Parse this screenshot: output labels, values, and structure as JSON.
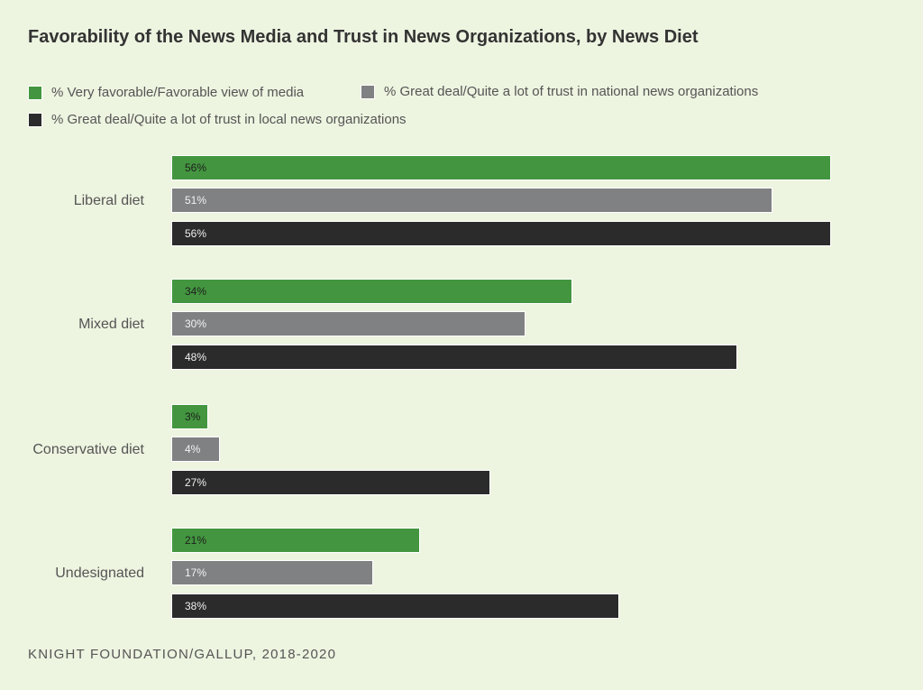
{
  "chart_data": {
    "type": "bar",
    "orientation": "horizontal",
    "title": "Favorability of the News Media and Trust in News Organizations, by News Diet",
    "categories": [
      "Liberal diet",
      "Mixed diet",
      "Conservative diet",
      "Undesignated"
    ],
    "series": [
      {
        "name": "% Very favorable/Favorable view of media",
        "color": "#43963f",
        "label_color": "#1e1e1e",
        "values": [
          56,
          34,
          3,
          21
        ]
      },
      {
        "name": "% Great deal/Quite a lot of trust in national news organizations",
        "color": "#7f8183",
        "label_color": "#f2f2f2",
        "values": [
          51,
          30,
          4,
          17
        ]
      },
      {
        "name": "% Great deal/Quite a lot of trust in local news organizations",
        "color": "#2b2b2b",
        "label_color": "#eeeeee",
        "values": [
          56,
          48,
          27,
          38
        ]
      }
    ],
    "value_suffix": "%",
    "grid": false,
    "legend": "top"
  },
  "source": "KNIGHT FOUNDATION/GALLUP, 2018-2020"
}
